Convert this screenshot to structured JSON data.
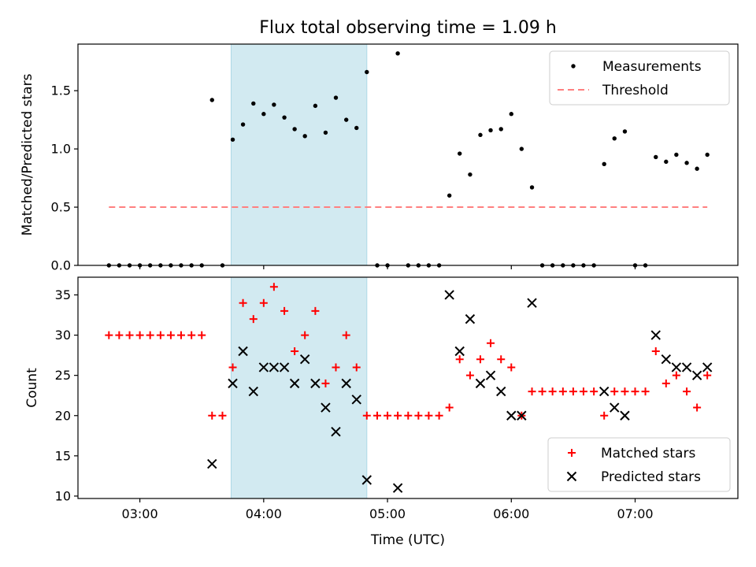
{
  "chart_data": {
    "title": "Flux total observing time = 1.09 h",
    "xlabel": "Time (UTC)",
    "x_ticks": [
      "03:00",
      "04:00",
      "05:00",
      "06:00",
      "07:00"
    ],
    "x_tick_hours": [
      3,
      4,
      5,
      6,
      7
    ],
    "xlim": [
      2.5,
      7.83
    ],
    "shaded_span": [
      3.737,
      4.833
    ],
    "colors": {
      "span": "#add8e6",
      "matched": "#ff0000",
      "predicted": "#000000",
      "threshold": "#ff8080",
      "measurements": "#000000"
    },
    "panels": [
      {
        "type": "scatter",
        "ylabel": "Matched/Predicted stars",
        "ylim": [
          0,
          1.9
        ],
        "y_ticks": [
          "0.0",
          "0.5",
          "1.0",
          "1.5"
        ],
        "y_tick_values": [
          0,
          0.5,
          1.0,
          1.5
        ],
        "legend_position": "top-right",
        "series": [
          {
            "name": "Measurements",
            "marker": "dot",
            "points": [
              [
                2.75,
                0
              ],
              [
                2.833,
                0
              ],
              [
                2.917,
                0
              ],
              [
                3.0,
                0
              ],
              [
                3.083,
                0
              ],
              [
                3.167,
                0
              ],
              [
                3.25,
                0
              ],
              [
                3.333,
                0
              ],
              [
                3.417,
                0
              ],
              [
                3.5,
                0
              ],
              [
                3.583,
                1.42
              ],
              [
                3.667,
                0
              ],
              [
                3.75,
                1.08
              ],
              [
                3.833,
                1.21
              ],
              [
                3.917,
                1.39
              ],
              [
                4.0,
                1.3
              ],
              [
                4.083,
                1.38
              ],
              [
                4.167,
                1.27
              ],
              [
                4.25,
                1.17
              ],
              [
                4.333,
                1.11
              ],
              [
                4.417,
                1.37
              ],
              [
                4.5,
                1.14
              ],
              [
                4.583,
                1.44
              ],
              [
                4.667,
                1.25
              ],
              [
                4.75,
                1.18
              ],
              [
                4.833,
                1.66
              ],
              [
                4.917,
                0
              ],
              [
                5.0,
                0
              ],
              [
                5.083,
                1.82
              ],
              [
                5.167,
                0
              ],
              [
                5.25,
                0
              ],
              [
                5.333,
                0
              ],
              [
                5.417,
                0
              ],
              [
                5.5,
                0.6
              ],
              [
                5.583,
                0.96
              ],
              [
                5.667,
                0.78
              ],
              [
                5.75,
                1.12
              ],
              [
                5.833,
                1.16
              ],
              [
                5.917,
                1.17
              ],
              [
                6.0,
                1.3
              ],
              [
                6.083,
                1.0
              ],
              [
                6.167,
                0.67
              ],
              [
                6.25,
                0
              ],
              [
                6.333,
                0
              ],
              [
                6.417,
                0
              ],
              [
                6.5,
                0
              ],
              [
                6.583,
                0
              ],
              [
                6.667,
                0
              ],
              [
                6.75,
                0.87
              ],
              [
                6.833,
                1.09
              ],
              [
                6.917,
                1.15
              ],
              [
                7.0,
                0
              ],
              [
                7.083,
                0
              ],
              [
                7.167,
                0.93
              ],
              [
                7.25,
                0.89
              ],
              [
                7.333,
                0.95
              ],
              [
                7.417,
                0.88
              ],
              [
                7.5,
                0.83
              ],
              [
                7.583,
                0.95
              ]
            ]
          },
          {
            "name": "Threshold",
            "marker": "dashed-line",
            "points": [
              [
                2.75,
                0.5
              ],
              [
                7.583,
                0.5
              ]
            ]
          }
        ]
      },
      {
        "type": "scatter",
        "ylabel": "Count",
        "ylim": [
          9.7,
          37.2
        ],
        "y_ticks": [
          "10",
          "15",
          "20",
          "25",
          "30",
          "35"
        ],
        "y_tick_values": [
          10,
          15,
          20,
          25,
          30,
          35
        ],
        "legend_position": "bottom-right",
        "series": [
          {
            "name": "Matched stars",
            "marker": "plus",
            "points": [
              [
                2.75,
                30
              ],
              [
                2.833,
                30
              ],
              [
                2.917,
                30
              ],
              [
                3.0,
                30
              ],
              [
                3.083,
                30
              ],
              [
                3.167,
                30
              ],
              [
                3.25,
                30
              ],
              [
                3.333,
                30
              ],
              [
                3.417,
                30
              ],
              [
                3.5,
                30
              ],
              [
                3.583,
                20
              ],
              [
                3.667,
                20
              ],
              [
                3.75,
                26
              ],
              [
                3.833,
                34
              ],
              [
                3.917,
                32
              ],
              [
                4.0,
                34
              ],
              [
                4.083,
                36
              ],
              [
                4.167,
                33
              ],
              [
                4.25,
                28
              ],
              [
                4.333,
                30
              ],
              [
                4.417,
                33
              ],
              [
                4.5,
                24
              ],
              [
                4.583,
                26
              ],
              [
                4.667,
                30
              ],
              [
                4.75,
                26
              ],
              [
                4.833,
                20
              ],
              [
                4.917,
                20
              ],
              [
                5.0,
                20
              ],
              [
                5.083,
                20
              ],
              [
                5.167,
                20
              ],
              [
                5.25,
                20
              ],
              [
                5.333,
                20
              ],
              [
                5.417,
                20
              ],
              [
                5.5,
                21
              ],
              [
                5.583,
                27
              ],
              [
                5.667,
                25
              ],
              [
                5.75,
                27
              ],
              [
                5.833,
                29
              ],
              [
                5.917,
                27
              ],
              [
                6.0,
                26
              ],
              [
                6.083,
                20
              ],
              [
                6.167,
                23
              ],
              [
                6.25,
                23
              ],
              [
                6.333,
                23
              ],
              [
                6.417,
                23
              ],
              [
                6.5,
                23
              ],
              [
                6.583,
                23
              ],
              [
                6.667,
                23
              ],
              [
                6.75,
                20
              ],
              [
                6.833,
                23
              ],
              [
                6.917,
                23
              ],
              [
                7.0,
                23
              ],
              [
                7.083,
                23
              ],
              [
                7.167,
                28
              ],
              [
                7.25,
                24
              ],
              [
                7.333,
                25
              ],
              [
                7.417,
                23
              ],
              [
                7.5,
                21
              ],
              [
                7.583,
                25
              ]
            ]
          },
          {
            "name": "Predicted stars",
            "marker": "x",
            "points": [
              [
                3.583,
                14
              ],
              [
                3.75,
                24
              ],
              [
                3.833,
                28
              ],
              [
                3.917,
                23
              ],
              [
                4.0,
                26
              ],
              [
                4.083,
                26
              ],
              [
                4.167,
                26
              ],
              [
                4.25,
                24
              ],
              [
                4.333,
                27
              ],
              [
                4.417,
                24
              ],
              [
                4.5,
                21
              ],
              [
                4.583,
                18
              ],
              [
                4.667,
                24
              ],
              [
                4.75,
                22
              ],
              [
                4.833,
                12
              ],
              [
                5.083,
                11
              ],
              [
                5.5,
                35
              ],
              [
                5.583,
                28
              ],
              [
                5.667,
                32
              ],
              [
                5.75,
                24
              ],
              [
                5.833,
                25
              ],
              [
                5.917,
                23
              ],
              [
                6.0,
                20
              ],
              [
                6.083,
                20
              ],
              [
                6.167,
                34
              ],
              [
                6.75,
                23
              ],
              [
                6.833,
                21
              ],
              [
                6.917,
                20
              ],
              [
                7.167,
                30
              ],
              [
                7.25,
                27
              ],
              [
                7.333,
                26
              ],
              [
                7.417,
                26
              ],
              [
                7.5,
                25
              ],
              [
                7.583,
                26
              ]
            ]
          }
        ]
      }
    ]
  }
}
